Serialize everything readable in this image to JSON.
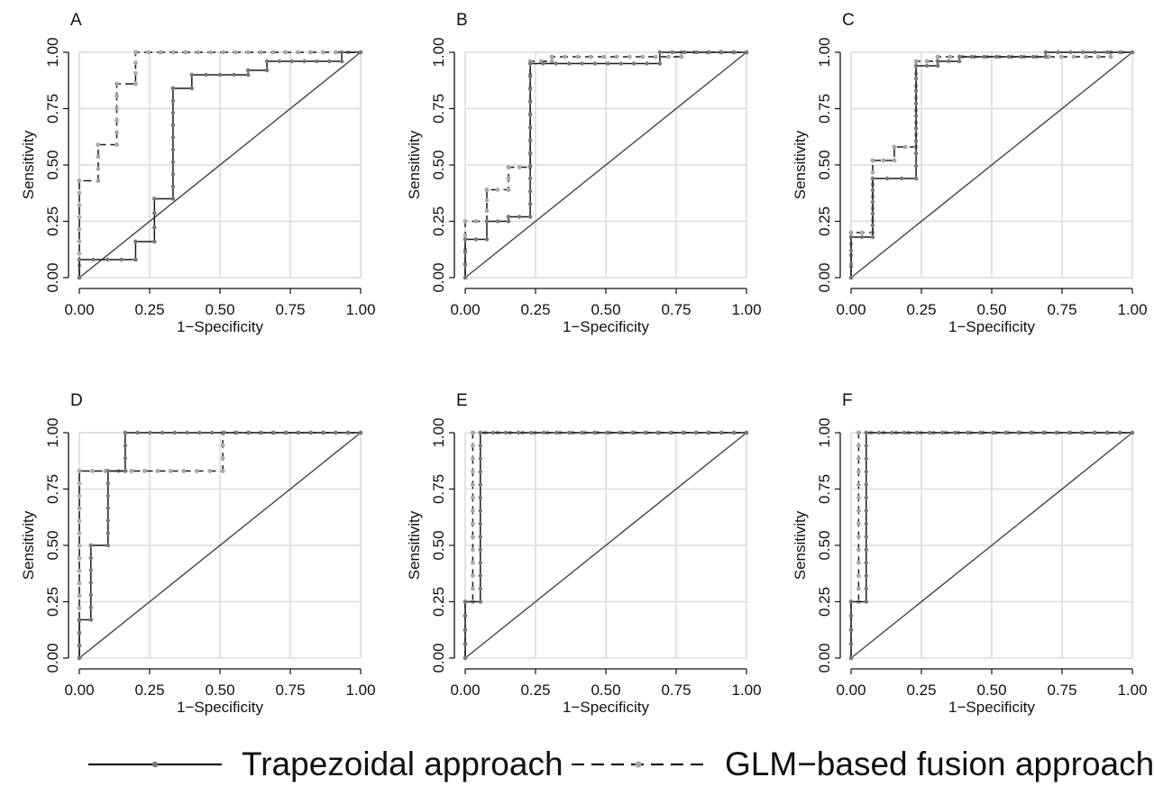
{
  "chart_data": [
    {
      "type": "line",
      "panel_label": "A",
      "xlabel": "1−Specificity",
      "ylabel": "Sensitivity",
      "xlim": [
        0,
        1
      ],
      "ylim": [
        0,
        1
      ],
      "grid": true,
      "xticks": [
        "0.00",
        "0.25",
        "0.50",
        "0.75",
        "1.00"
      ],
      "yticks": [
        "0.00",
        "0.25",
        "0.50",
        "0.75",
        "1.00"
      ],
      "series": [
        {
          "name": "Trapezoidal approach",
          "points": [
            [
              0,
              0
            ],
            [
              0,
              0.08
            ],
            [
              0.2,
              0.08
            ],
            [
              0.2,
              0.16
            ],
            [
              0.267,
              0.16
            ],
            [
              0.267,
              0.35
            ],
            [
              0.333,
              0.35
            ],
            [
              0.333,
              0.84
            ],
            [
              0.4,
              0.84
            ],
            [
              0.4,
              0.9
            ],
            [
              0.6,
              0.9
            ],
            [
              0.6,
              0.92
            ],
            [
              0.667,
              0.92
            ],
            [
              0.667,
              0.96
            ],
            [
              0.933,
              0.96
            ],
            [
              0.933,
              1
            ],
            [
              1,
              1
            ]
          ]
        },
        {
          "name": "GLM−based fusion approach",
          "points": [
            [
              0,
              0
            ],
            [
              0,
              0.43
            ],
            [
              0.067,
              0.43
            ],
            [
              0.067,
              0.59
            ],
            [
              0.133,
              0.59
            ],
            [
              0.133,
              0.86
            ],
            [
              0.2,
              0.86
            ],
            [
              0.2,
              1
            ],
            [
              1,
              1
            ]
          ]
        }
      ]
    },
    {
      "type": "line",
      "panel_label": "B",
      "xlabel": "1−Specificity",
      "ylabel": "Sensitivity",
      "xlim": [
        0,
        1
      ],
      "ylim": [
        0,
        1
      ],
      "grid": true,
      "xticks": [
        "0.00",
        "0.25",
        "0.50",
        "0.75",
        "1.00"
      ],
      "yticks": [
        "0.00",
        "0.25",
        "0.50",
        "0.75",
        "1.00"
      ],
      "series": [
        {
          "name": "Trapezoidal approach",
          "points": [
            [
              0,
              0
            ],
            [
              0,
              0.17
            ],
            [
              0.077,
              0.17
            ],
            [
              0.077,
              0.25
            ],
            [
              0.154,
              0.25
            ],
            [
              0.154,
              0.27
            ],
            [
              0.231,
              0.27
            ],
            [
              0.231,
              0.95
            ],
            [
              0.692,
              0.95
            ],
            [
              0.692,
              1
            ],
            [
              1,
              1
            ]
          ]
        },
        {
          "name": "GLM−based fusion approach",
          "points": [
            [
              0,
              0
            ],
            [
              0,
              0.25
            ],
            [
              0.077,
              0.25
            ],
            [
              0.077,
              0.39
            ],
            [
              0.154,
              0.39
            ],
            [
              0.154,
              0.49
            ],
            [
              0.231,
              0.49
            ],
            [
              0.231,
              0.96
            ],
            [
              0.308,
              0.96
            ],
            [
              0.308,
              0.98
            ],
            [
              0.769,
              0.98
            ],
            [
              0.769,
              1
            ],
            [
              1,
              1
            ]
          ]
        }
      ]
    },
    {
      "type": "line",
      "panel_label": "C",
      "xlabel": "1−Specificity",
      "ylabel": "Sensitivity",
      "xlim": [
        0,
        1
      ],
      "ylim": [
        0,
        1
      ],
      "grid": true,
      "xticks": [
        "0.00",
        "0.25",
        "0.50",
        "0.75",
        "1.00"
      ],
      "yticks": [
        "0.00",
        "0.25",
        "0.50",
        "0.75",
        "1.00"
      ],
      "series": [
        {
          "name": "Trapezoidal approach",
          "points": [
            [
              0,
              0
            ],
            [
              0,
              0.18
            ],
            [
              0.077,
              0.18
            ],
            [
              0.077,
              0.44
            ],
            [
              0.231,
              0.44
            ],
            [
              0.231,
              0.94
            ],
            [
              0.308,
              0.94
            ],
            [
              0.308,
              0.96
            ],
            [
              0.385,
              0.96
            ],
            [
              0.385,
              0.98
            ],
            [
              0.692,
              0.98
            ],
            [
              0.692,
              1
            ],
            [
              1,
              1
            ]
          ]
        },
        {
          "name": "GLM−based fusion approach",
          "points": [
            [
              0,
              0
            ],
            [
              0,
              0.2
            ],
            [
              0.077,
              0.2
            ],
            [
              0.077,
              0.52
            ],
            [
              0.154,
              0.52
            ],
            [
              0.154,
              0.58
            ],
            [
              0.231,
              0.58
            ],
            [
              0.231,
              0.96
            ],
            [
              0.308,
              0.96
            ],
            [
              0.308,
              0.98
            ],
            [
              0.923,
              0.98
            ],
            [
              0.923,
              1
            ],
            [
              1,
              1
            ]
          ]
        }
      ]
    },
    {
      "type": "line",
      "panel_label": "D",
      "xlabel": "1−Specificity",
      "ylabel": "Sensitivity",
      "xlim": [
        0,
        1
      ],
      "ylim": [
        0,
        1
      ],
      "grid": true,
      "xticks": [
        "0.00",
        "0.25",
        "0.50",
        "0.75",
        "1.00"
      ],
      "yticks": [
        "0.00",
        "0.25",
        "0.50",
        "0.75",
        "1.00"
      ],
      "series": [
        {
          "name": "Trapezoidal approach",
          "points": [
            [
              0,
              0
            ],
            [
              0,
              0.17
            ],
            [
              0.041,
              0.17
            ],
            [
              0.041,
              0.5
            ],
            [
              0.102,
              0.5
            ],
            [
              0.102,
              0.83
            ],
            [
              0.163,
              0.83
            ],
            [
              0.163,
              1
            ],
            [
              1,
              1
            ]
          ]
        },
        {
          "name": "GLM−based fusion approach",
          "points": [
            [
              0,
              0
            ],
            [
              0,
              0.83
            ],
            [
              0.51,
              0.83
            ],
            [
              0.51,
              1
            ],
            [
              1,
              1
            ]
          ]
        }
      ]
    },
    {
      "type": "line",
      "panel_label": "E",
      "xlabel": "1−Specificity",
      "ylabel": "Sensitivity",
      "xlim": [
        0,
        1
      ],
      "ylim": [
        0,
        1
      ],
      "grid": true,
      "xticks": [
        "0.00",
        "0.25",
        "0.50",
        "0.75",
        "1.00"
      ],
      "yticks": [
        "0.00",
        "0.25",
        "0.50",
        "0.75",
        "1.00"
      ],
      "series": [
        {
          "name": "Trapezoidal approach",
          "points": [
            [
              0,
              0
            ],
            [
              0,
              0.25
            ],
            [
              0.054,
              0.25
            ],
            [
              0.054,
              1
            ],
            [
              1,
              1
            ]
          ]
        },
        {
          "name": "GLM−based fusion approach",
          "points": [
            [
              0,
              0
            ],
            [
              0,
              0.25
            ],
            [
              0.027,
              0.25
            ],
            [
              0.027,
              1
            ],
            [
              1,
              1
            ]
          ]
        }
      ]
    },
    {
      "type": "line",
      "panel_label": "F",
      "xlabel": "1−Specificity",
      "ylabel": "Sensitivity",
      "xlim": [
        0,
        1
      ],
      "ylim": [
        0,
        1
      ],
      "grid": true,
      "xticks": [
        "0.00",
        "0.25",
        "0.50",
        "0.75",
        "1.00"
      ],
      "yticks": [
        "0.00",
        "0.25",
        "0.50",
        "0.75",
        "1.00"
      ],
      "series": [
        {
          "name": "Trapezoidal approach",
          "points": [
            [
              0,
              0
            ],
            [
              0,
              0.25
            ],
            [
              0.054,
              0.25
            ],
            [
              0.054,
              1
            ],
            [
              1,
              1
            ]
          ]
        },
        {
          "name": "GLM−based fusion approach",
          "points": [
            [
              0,
              0
            ],
            [
              0,
              0.25
            ],
            [
              0.027,
              0.25
            ],
            [
              0.027,
              1
            ],
            [
              1,
              1
            ]
          ]
        }
      ]
    }
  ],
  "legend": {
    "items": [
      {
        "label": "Trapezoidal approach",
        "line_color": "#1a1a1a",
        "marker_color": "#777777",
        "dashed": false
      },
      {
        "label": "GLM−based fusion approach",
        "line_color": "#1a1a1a",
        "marker_color": "#a8a8a8",
        "dashed": true
      }
    ]
  },
  "colors": {
    "grid": "#dcdcdc",
    "diagonal": "#444444",
    "trap_markers": "#777777",
    "glm_markers": "#a8a8a8",
    "axis": "#111111"
  }
}
